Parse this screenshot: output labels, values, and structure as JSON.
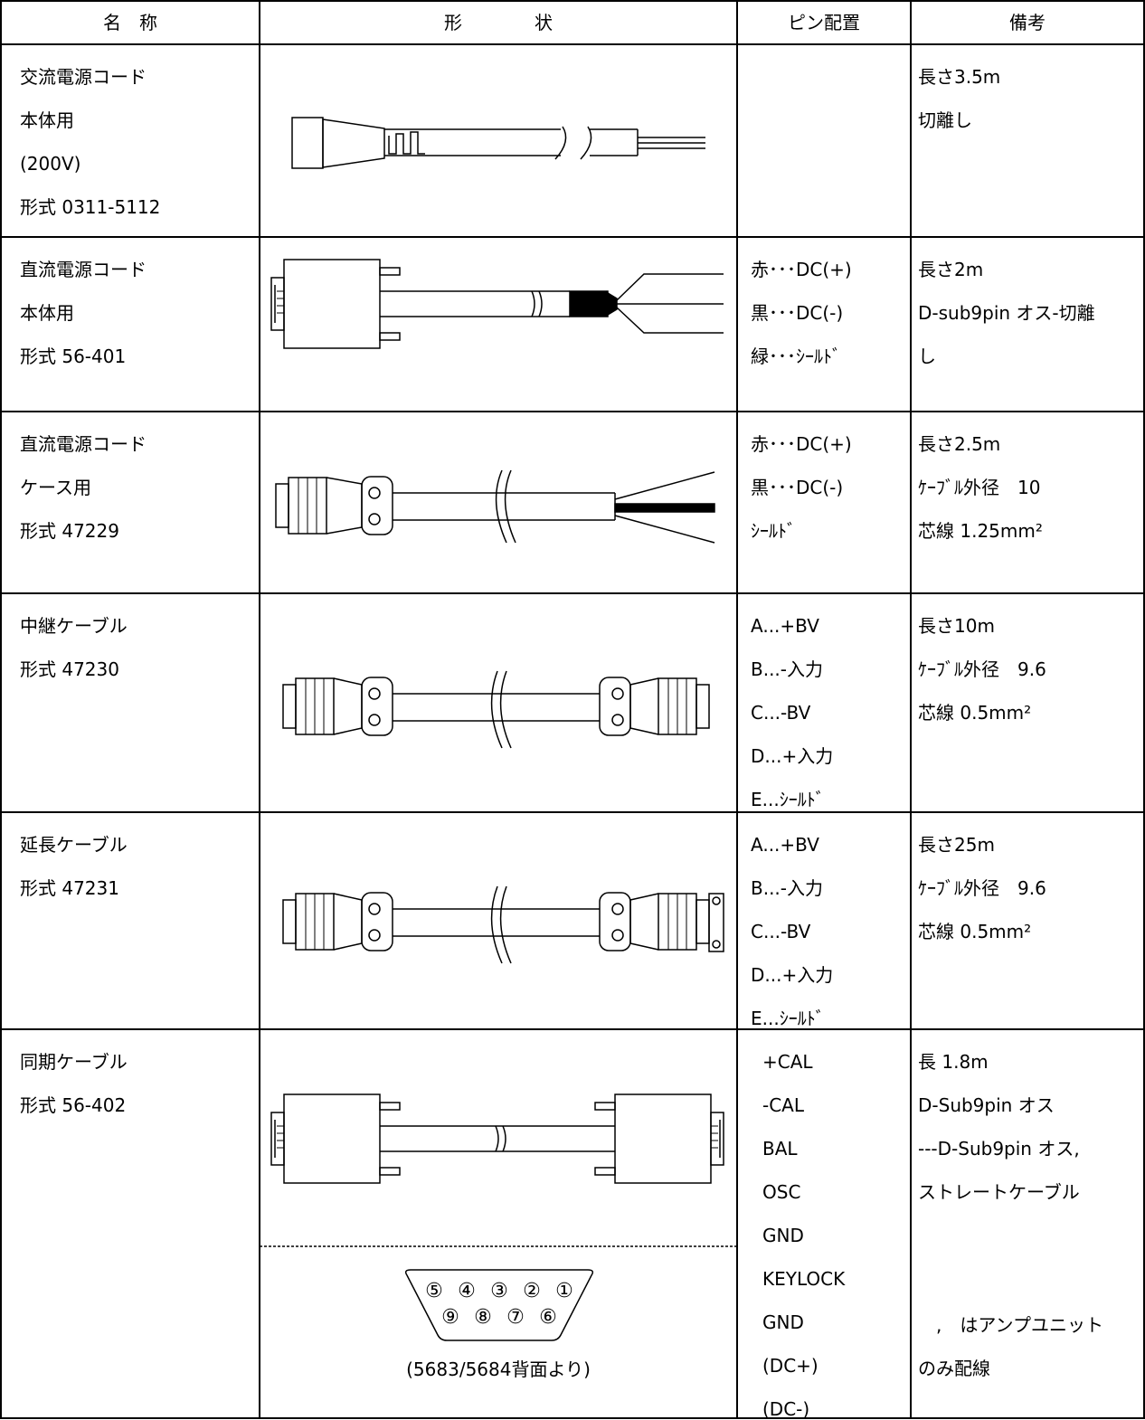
{
  "header": [
    "名　称",
    "形　　　　状",
    "ピン配置",
    "備考"
  ],
  "rows": [
    {
      "name": [
        "交流電源コード",
        "本体用",
        "(200V)",
        "形式 0311-5112"
      ],
      "pins": [],
      "notes": [
        "長さ3.5m",
        "切離し"
      ]
    },
    {
      "name": [
        "直流電源コード",
        "本体用",
        "形式 56-401"
      ],
      "pins": [
        "赤･･･DC(+)",
        "黒･･･DC(-)",
        "緑･･･ｼｰﾙﾄﾞ"
      ],
      "notes": [
        "長さ2m",
        "D-sub9pin オス-切離",
        "し"
      ]
    },
    {
      "name": [
        "直流電源コード",
        "ケース用",
        "形式 47229"
      ],
      "pins": [
        "赤･･･DC(+)",
        "黒･･･DC(-)",
        "ｼｰﾙﾄﾞ"
      ],
      "notes": [
        "長さ2.5m",
        "ｹｰﾌﾞﾙ外径　10",
        "芯線 1.25mm²"
      ]
    },
    {
      "name": [
        "中継ケーブル",
        "形式 47230"
      ],
      "pins": [
        "A...+BV",
        "B...-入力",
        "C...-BV",
        "D...+入力",
        "E...ｼｰﾙﾄﾞ"
      ],
      "notes": [
        "長さ10m",
        "ｹｰﾌﾞﾙ外径　9.6",
        "芯線 0.5mm²"
      ]
    },
    {
      "name": [
        "延長ケーブル",
        "形式 47231"
      ],
      "pins": [
        "A...+BV",
        "B...-入力",
        "C...-BV",
        "D...+入力",
        "E...ｼｰﾙﾄﾞ"
      ],
      "notes": [
        "長さ25m",
        "ｹｰﾌﾞﾙ外径　9.6",
        "芯線 0.5mm²"
      ]
    },
    {
      "name": [
        "同期ケーブル",
        "形式 56-402"
      ],
      "pins": [
        "+CAL",
        "-CAL",
        "BAL",
        "OSC",
        "GND",
        "KEYLOCK",
        "GND",
        "(DC+)",
        "(DC-)"
      ],
      "notes": [
        "長 1.8m",
        "D-Sub9pin オス",
        "---D-Sub9pin オス,",
        "ストレートケーブル"
      ],
      "notes_footer": [
        "　,　はアンプユニット",
        "のみ配線"
      ]
    }
  ],
  "connector": {
    "pins_top": [
      "⑤",
      "④",
      "③",
      "②",
      "①"
    ],
    "pins_bottom": [
      "⑨",
      "⑧",
      "⑦",
      "⑥"
    ],
    "caption": "(5683/5684背面より)"
  }
}
